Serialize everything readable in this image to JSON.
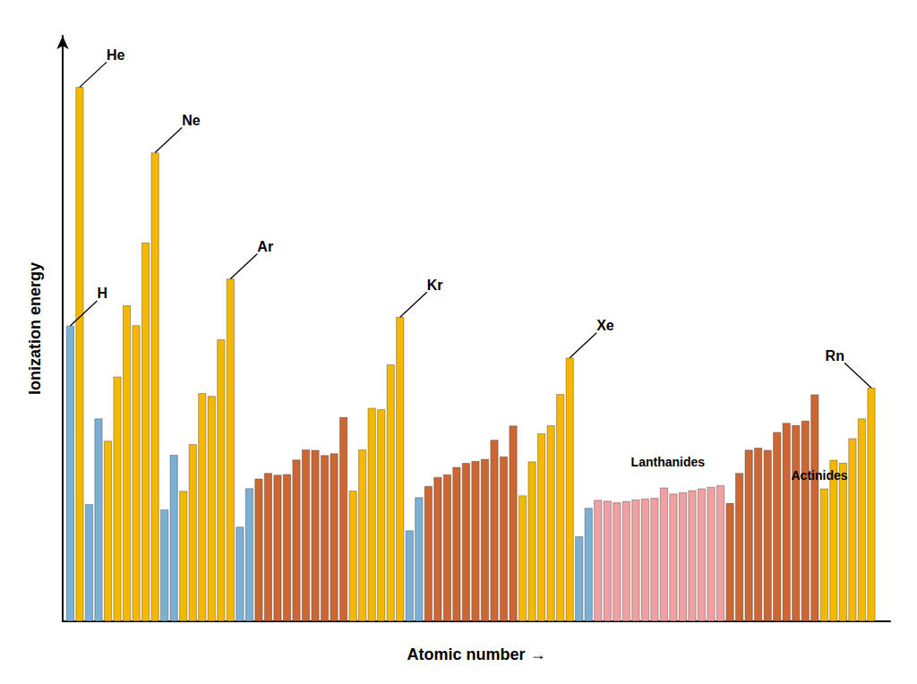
{
  "chart_data": {
    "type": "bar",
    "xlabel": "Atomic number →",
    "ylabel": "Ionization energy",
    "x": [
      1,
      2,
      3,
      4,
      5,
      6,
      7,
      8,
      9,
      10,
      11,
      12,
      13,
      14,
      15,
      16,
      17,
      18,
      19,
      20,
      21,
      22,
      23,
      24,
      25,
      26,
      27,
      28,
      29,
      30,
      31,
      32,
      33,
      34,
      35,
      36,
      37,
      38,
      39,
      40,
      41,
      42,
      43,
      44,
      45,
      46,
      47,
      48,
      49,
      50,
      51,
      52,
      53,
      54,
      55,
      56,
      57,
      58,
      59,
      60,
      61,
      62,
      63,
      64,
      65,
      66,
      67,
      68,
      69,
      70,
      71,
      72,
      73,
      74,
      75,
      76,
      77,
      78,
      79,
      80,
      81,
      82,
      83,
      84,
      85,
      86
    ],
    "values": [
      1312,
      2372,
      520,
      900,
      801,
      1086,
      1402,
      1314,
      1681,
      2081,
      496,
      738,
      578,
      786,
      1012,
      1000,
      1251,
      1521,
      419,
      590,
      633,
      658,
      650,
      653,
      717,
      762,
      760,
      737,
      745,
      906,
      579,
      762,
      947,
      941,
      1140,
      1351,
      403,
      550,
      600,
      640,
      652,
      684,
      702,
      711,
      720,
      805,
      731,
      868,
      558,
      709,
      834,
      869,
      1008,
      1170,
      376,
      503,
      538,
      534,
      527,
      533,
      540,
      544,
      547,
      593,
      566,
      572,
      581,
      589,
      596,
      603,
      524,
      658,
      761,
      770,
      760,
      840,
      880,
      870,
      890,
      1007,
      589,
      716,
      703,
      812,
      900,
      1037
    ],
    "colors": [
      "#7BAFD4",
      "#F5B800",
      "#7BAFD4",
      "#7BAFD4",
      "#F5B800",
      "#F5B800",
      "#F5B800",
      "#F5B800",
      "#F5B800",
      "#F5B800",
      "#7BAFD4",
      "#7BAFD4",
      "#F5B800",
      "#F5B800",
      "#F5B800",
      "#F5B800",
      "#F5B800",
      "#F5B800",
      "#7BAFD4",
      "#7BAFD4",
      "#CC6633",
      "#CC6633",
      "#CC6633",
      "#CC6633",
      "#CC6633",
      "#CC6633",
      "#CC6633",
      "#CC6633",
      "#CC6633",
      "#CC6633",
      "#F5B800",
      "#F5B800",
      "#F5B800",
      "#F5B800",
      "#F5B800",
      "#F5B800",
      "#7BAFD4",
      "#7BAFD4",
      "#CC6633",
      "#CC6633",
      "#CC6633",
      "#CC6633",
      "#CC6633",
      "#CC6633",
      "#CC6633",
      "#CC6633",
      "#CC6633",
      "#CC6633",
      "#F5B800",
      "#F5B800",
      "#F5B800",
      "#F5B800",
      "#F5B800",
      "#F5B800",
      "#7BAFD4",
      "#7BAFD4",
      "#F0A0A0",
      "#F0A0A0",
      "#F0A0A0",
      "#F0A0A0",
      "#F0A0A0",
      "#F0A0A0",
      "#F0A0A0",
      "#F0A0A0",
      "#F0A0A0",
      "#F0A0A0",
      "#F0A0A0",
      "#F0A0A0",
      "#F0A0A0",
      "#F0A0A0",
      "#CC6633",
      "#CC6633",
      "#CC6633",
      "#CC6633",
      "#CC6633",
      "#CC6633",
      "#CC6633",
      "#CC6633",
      "#CC6633",
      "#CC6633",
      "#F5B800",
      "#F5B800",
      "#F5B800",
      "#F5B800",
      "#F5B800",
      "#F5B800"
    ],
    "xlim": [
      0.2,
      88
    ],
    "xticks": [],
    "ylim": [
      0,
      2600
    ],
    "yticks": [],
    "tick_labels": false,
    "grid": false,
    "annotations": [
      {
        "text": "H",
        "x": 1,
        "y": 1312
      },
      {
        "text": "He",
        "x": 2,
        "y": 2372
      },
      {
        "text": "Ne",
        "x": 10,
        "y": 2081
      },
      {
        "text": "Ar",
        "x": 18,
        "y": 1521
      },
      {
        "text": "Kr",
        "x": 36,
        "y": 1351
      },
      {
        "text": "Xe",
        "x": 54,
        "y": 1170
      },
      {
        "text": "Rn",
        "x": 86,
        "y": 1037
      },
      {
        "text": "Lanthanides",
        "x": 60.5,
        "y": 680
      },
      {
        "text": "Actinides",
        "x": 77.5,
        "y": 620
      }
    ]
  }
}
